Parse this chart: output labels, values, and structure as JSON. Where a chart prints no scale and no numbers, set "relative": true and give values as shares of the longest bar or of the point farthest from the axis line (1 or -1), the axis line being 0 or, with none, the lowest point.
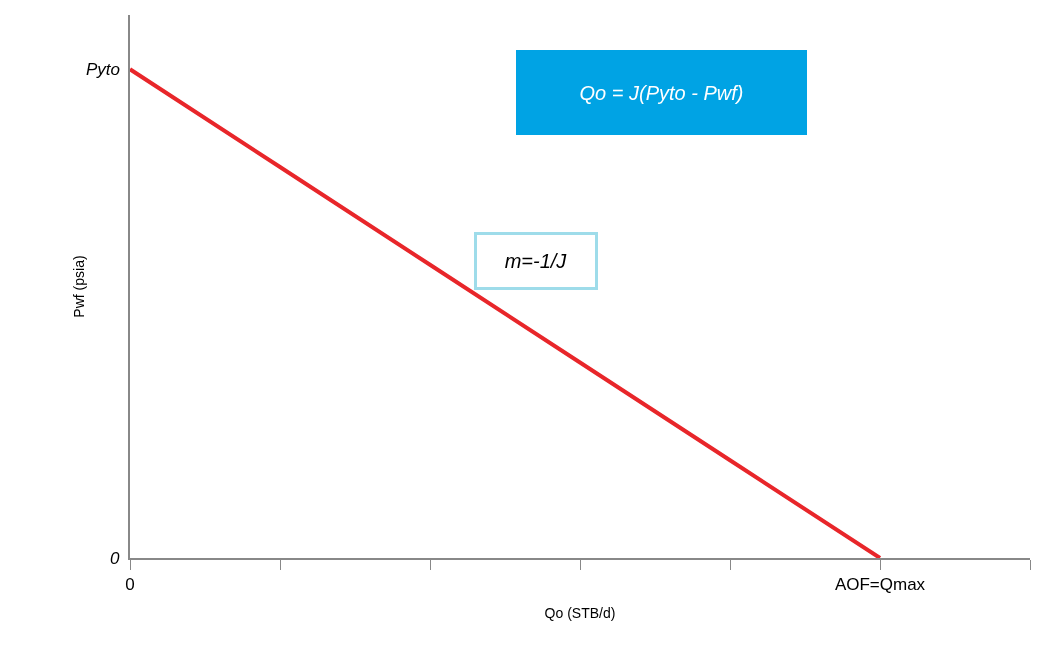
{
  "chart_data": {
    "type": "line",
    "xlabel": "Qo (STB/d)",
    "ylabel": "Pwf (psia)",
    "relative": true,
    "categories": [
      "0",
      null,
      null,
      null,
      null,
      "AOF=Qmax",
      null
    ],
    "series": [
      {
        "color": "#e8262a",
        "values": [
          1,
          0.8,
          0.6,
          0.4,
          0.2,
          0,
          null
        ]
      }
    ],
    "annotations": [
      "Qo = J(Pyto - Pwf)",
      "m=-1/J",
      "Pyto",
      "0"
    ],
    "marker": "none",
    "line_style": "solid"
  }
}
